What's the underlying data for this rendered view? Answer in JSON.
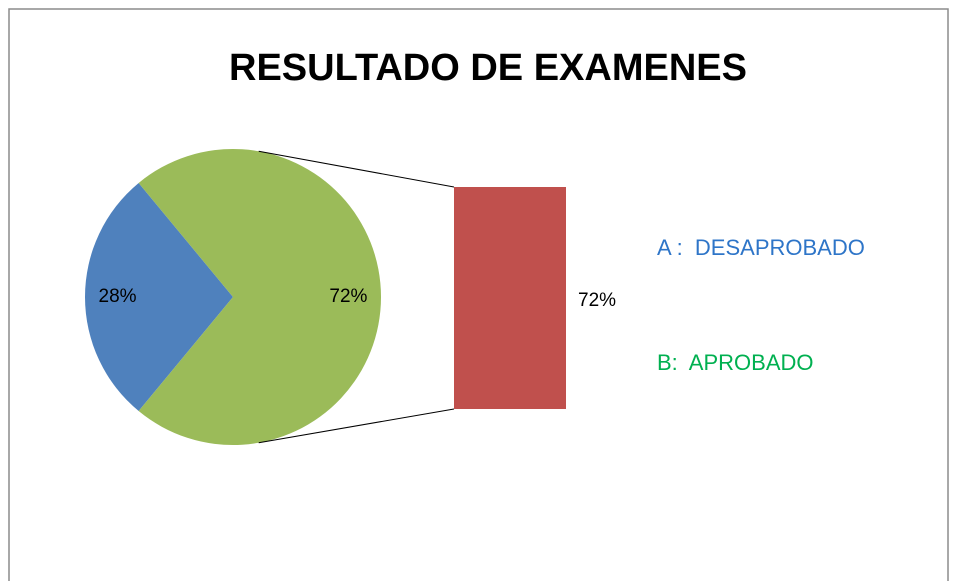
{
  "chart_data": {
    "type": "pie-of-bar",
    "title": "RESULTADO DE EXAMENES",
    "values": [
      28,
      72
    ],
    "value_labels": [
      "28%",
      "72%"
    ],
    "colors": [
      "#4f81bd",
      "#9bbb59"
    ],
    "bar_values": [
      72
    ],
    "bar_value_labels": [
      "72%"
    ],
    "bar_color": "#c0504d",
    "annotations": [
      {
        "text": "A :  DESAPROBADO",
        "color": "#2e75c8"
      },
      {
        "text": "B:  APROBADO",
        "color": "#00b050"
      }
    ]
  }
}
